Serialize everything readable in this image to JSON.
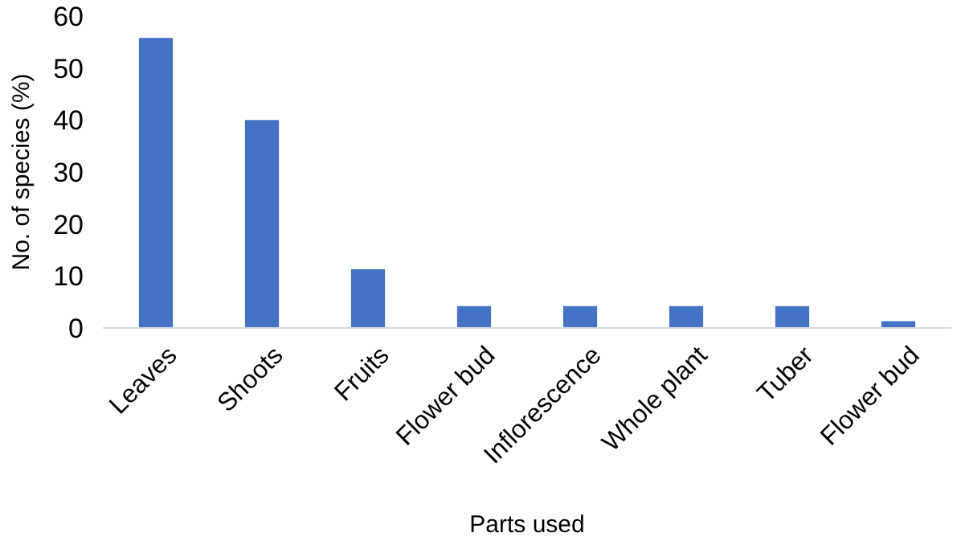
{
  "chart_data": {
    "type": "bar",
    "xlabel": "Parts used",
    "ylabel": "No. of species (%)",
    "categories": [
      "Leaves",
      "Shoots",
      "Fruits",
      "Flower bud",
      "Inflorescence",
      "Whole plant",
      "Tuber",
      "Flower bud"
    ],
    "values": [
      55.8,
      40,
      11.3,
      4.2,
      4.2,
      4.2,
      4.2,
      1.3
    ],
    "color": "#4472c4",
    "ylim": [
      0,
      60
    ],
    "yticks": [
      0,
      10,
      20,
      30,
      40,
      50,
      60
    ],
    "grid": false
  }
}
